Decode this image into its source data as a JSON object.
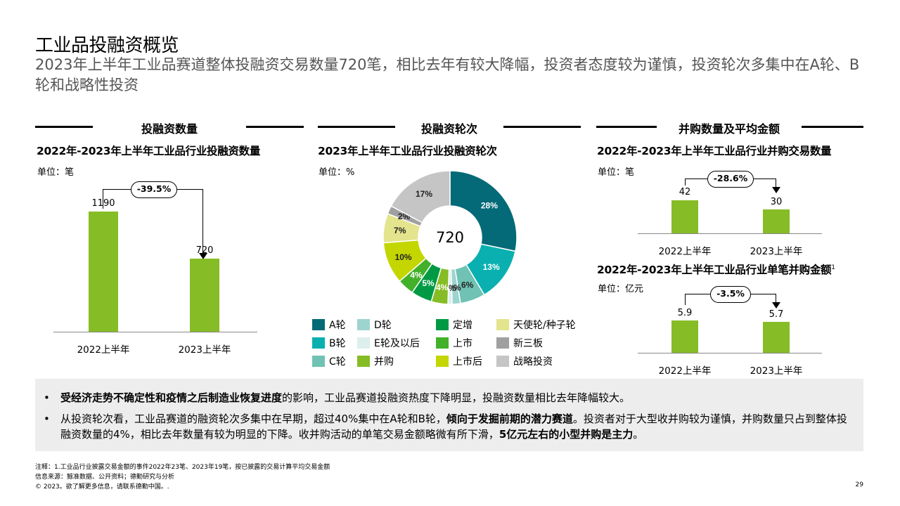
{
  "title": "工业品投融资概览",
  "subtitle": "2023年上半年工业品赛道整体投融资交易数量720笔，相比去年有较大降幅，投资者态度较为谨慎，投资轮次多集中在A轮、B轮和战略性投资",
  "sections": {
    "left": "投融资数量",
    "middle": "投融资轮次",
    "right": "并购数量及平均金额"
  },
  "chart_data": [
    {
      "type": "bar",
      "title": "2022年-2023年上半年工业品行业投融资数量",
      "unit": "单位：笔",
      "categories": [
        "2022上半年",
        "2023上半年"
      ],
      "values": [
        1190,
        720
      ],
      "value_labels": [
        "1190",
        "720"
      ],
      "change": "-39.5%",
      "ylim": [
        0,
        1300
      ]
    },
    {
      "type": "pie",
      "title": "2023年上半年工业品行业投融资轮次",
      "unit": "单位：%",
      "center_label": "720",
      "series": [
        {
          "name": "A轮",
          "value": 28,
          "label": "28%",
          "color": "#046a78"
        },
        {
          "name": "B轮",
          "value": 13,
          "label": "13%",
          "color": "#0ab0b0"
        },
        {
          "name": "C轮",
          "value": 6,
          "label": "6%",
          "color": "#6fc2b4"
        },
        {
          "name": "D轮",
          "value": 2,
          "label": "2%",
          "color": "#9dd4cf"
        },
        {
          "name": "E轮及以后",
          "value": 1,
          "label": "1%",
          "color": "#dcefed"
        },
        {
          "name": "并购",
          "value": 4,
          "label": "4%",
          "color": "#86bc25"
        },
        {
          "name": "定增",
          "value": 5,
          "label": "5%",
          "color": "#009a44"
        },
        {
          "name": "上市",
          "value": 4,
          "label": "4%",
          "color": "#43b02a"
        },
        {
          "name": "上市后",
          "value": 10,
          "label": "10%",
          "color": "#c4d600"
        },
        {
          "name": "天使轮/种子轮",
          "value": 7,
          "label": "7%",
          "color": "#e3e48d"
        },
        {
          "name": "新三板",
          "value": 2,
          "label": "2%",
          "color": "#a0a0a0"
        },
        {
          "name": "战略投资",
          "value": 17,
          "label": "17%",
          "color": "#c5c5c5"
        }
      ]
    },
    {
      "type": "bar",
      "title": "2022年-2023年上半年工业品行业并购交易数量",
      "unit": "单位：笔",
      "categories": [
        "2022上半年",
        "2023上半年"
      ],
      "values": [
        42,
        30
      ],
      "value_labels": [
        "42",
        "30"
      ],
      "change": "-28.6%",
      "ylim": [
        0,
        50
      ]
    },
    {
      "type": "bar",
      "title": "2022年-2023年上半年工业品行业单笔并购金额",
      "footnote_mark": "1",
      "unit": "单位：亿元",
      "categories": [
        "2022上半年",
        "2023上半年"
      ],
      "values": [
        5.9,
        5.7
      ],
      "value_labels": [
        "5.9",
        "5.7"
      ],
      "change": "-3.5%",
      "ylim": [
        0,
        7
      ]
    }
  ],
  "legend_order": [
    "A轮",
    "D轮",
    "定增",
    "天使轮/种子轮",
    "B轮",
    "E轮及以后",
    "上市",
    "新三板",
    "C轮",
    "并购",
    "上市后",
    "战略投资"
  ],
  "notes": [
    {
      "bold1": "受经济走势不确定性和疫情之后制造业恢复进度",
      "text1": "的影响，工业品赛道投融资热度下降明显，投融资数量相比去年降幅较大。"
    },
    {
      "text1": "从投资轮次看，工业品赛道的融资轮次多集中在早期，超过40%集中在A轮和B轮，",
      "bold1": "倾向于发掘前期的潜力赛道",
      "text2": "。投资者对于大型收并购较为谨慎，并购数量只占到整体投融资数量的4%，相比去年数量有较为明显的下降。收并购活动的单笔交易金额略微有所下滑，",
      "bold2": "5亿元左右的小型并购是主力",
      "text3": "。"
    }
  ],
  "bullet_char": "•",
  "footer": {
    "note": "注释：1.工业品行业披露交易金额的事件2022年23笔、2023年19笔，按已披露的交易计算平均交易金额",
    "source": "信息来源：鲸准数据、公开资料；德勤研究与分析",
    "copyright": "© 2023。欲了解更多信息，请联系德勤中国。.",
    "page": "29"
  }
}
